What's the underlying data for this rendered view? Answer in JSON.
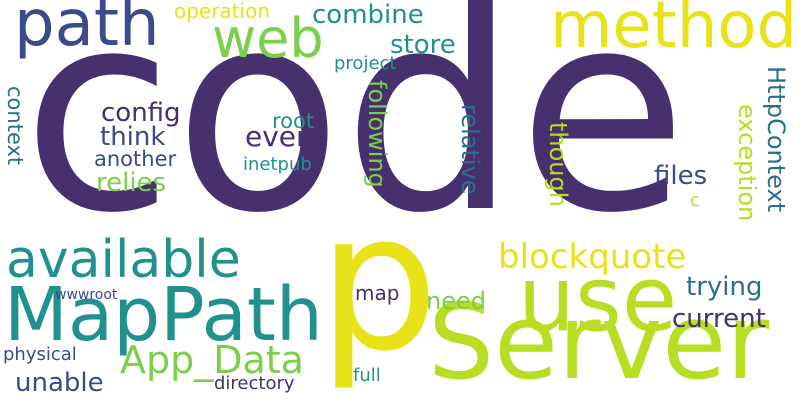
{
  "colors": {
    "background": "#ffffff",
    "palette": [
      "#46306e",
      "#3b4a8a",
      "#2b6f8f",
      "#21918c",
      "#38a96e",
      "#7ccf4a",
      "#b7de22",
      "#e8e319"
    ]
  },
  "words": [
    {
      "id": "code",
      "text": "code"
    },
    {
      "id": "server",
      "text": "Server"
    },
    {
      "id": "p",
      "text": "p"
    },
    {
      "id": "use",
      "text": "use"
    },
    {
      "id": "mappath",
      "text": "MapPath"
    },
    {
      "id": "method",
      "text": "method"
    },
    {
      "id": "path",
      "text": "path"
    },
    {
      "id": "web",
      "text": "web"
    },
    {
      "id": "available",
      "text": "available"
    },
    {
      "id": "app_data",
      "text": "App_Data"
    },
    {
      "id": "blockquote",
      "text": "blockquote"
    },
    {
      "id": "combine",
      "text": "combine"
    },
    {
      "id": "store",
      "text": "store"
    },
    {
      "id": "operation",
      "text": "operation"
    },
    {
      "id": "project",
      "text": "project"
    },
    {
      "id": "config",
      "text": "config"
    },
    {
      "id": "think",
      "text": "think"
    },
    {
      "id": "another",
      "text": "another"
    },
    {
      "id": "relies",
      "text": "relies"
    },
    {
      "id": "root",
      "text": "root"
    },
    {
      "id": "even",
      "text": "even"
    },
    {
      "id": "inetpub",
      "text": "inetpub"
    },
    {
      "id": "following",
      "text": "following"
    },
    {
      "id": "relative",
      "text": "relative"
    },
    {
      "id": "though",
      "text": "though"
    },
    {
      "id": "exception",
      "text": "exception"
    },
    {
      "id": "httpcontext",
      "text": "HttpContext"
    },
    {
      "id": "files",
      "text": "files"
    },
    {
      "id": "c",
      "text": "c"
    },
    {
      "id": "trying",
      "text": "trying"
    },
    {
      "id": "current",
      "text": "current"
    },
    {
      "id": "context",
      "text": "context"
    },
    {
      "id": "need",
      "text": "need"
    },
    {
      "id": "map",
      "text": "map"
    },
    {
      "id": "wwwroot",
      "text": "wwwroot"
    },
    {
      "id": "physical",
      "text": "physical"
    },
    {
      "id": "unable",
      "text": "unable"
    },
    {
      "id": "directory",
      "text": "directory"
    },
    {
      "id": "full",
      "text": "full"
    }
  ]
}
